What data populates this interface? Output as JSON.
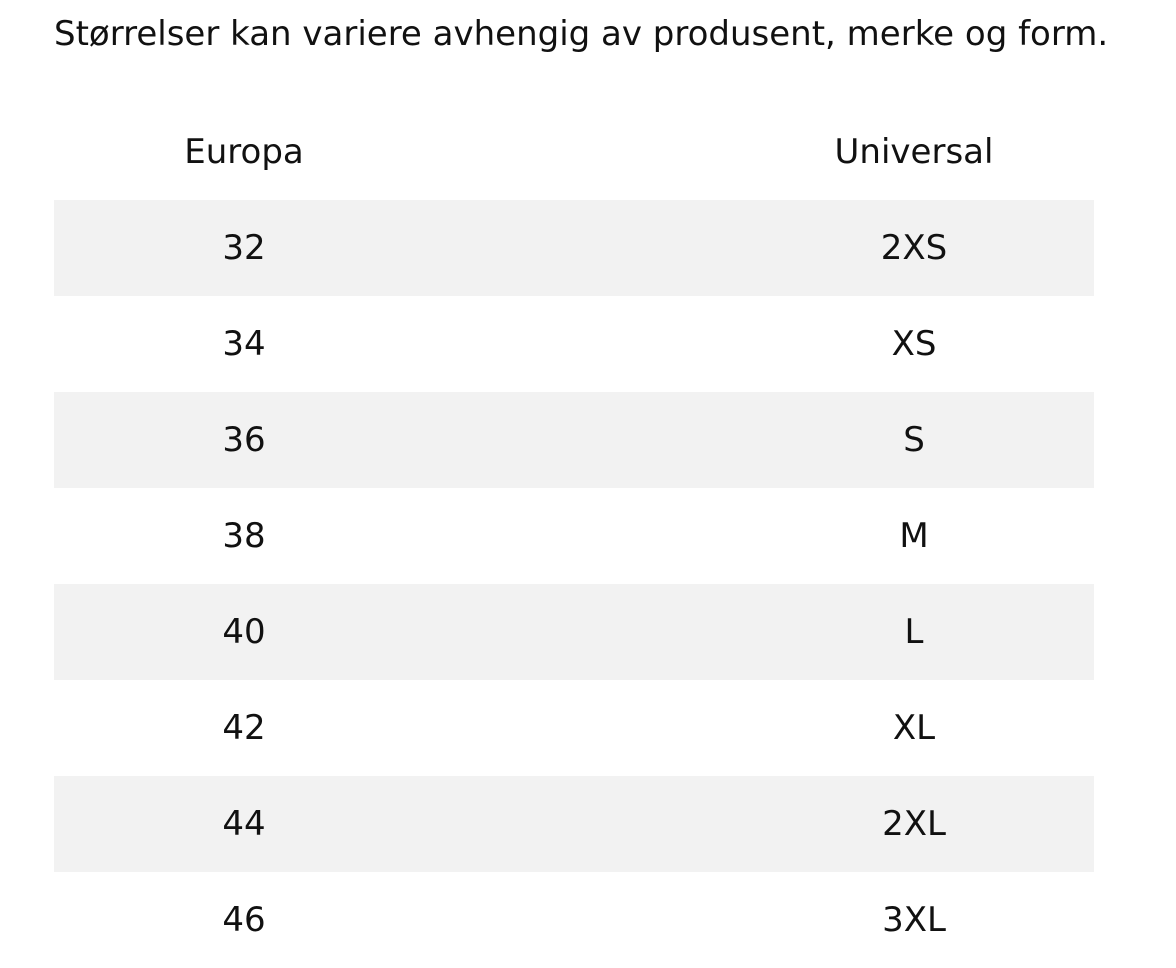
{
  "note": "Størrelser kan variere avhengig av produsent, merke og form.",
  "table": {
    "headers": {
      "europe": "Europa",
      "universal": "Universal"
    },
    "rows": [
      {
        "eu": "32",
        "universal": "2XS"
      },
      {
        "eu": "34",
        "universal": "XS"
      },
      {
        "eu": "36",
        "universal": "S"
      },
      {
        "eu": "38",
        "universal": "M"
      },
      {
        "eu": "40",
        "universal": "L"
      },
      {
        "eu": "42",
        "universal": "XL"
      },
      {
        "eu": "44",
        "universal": "2XL"
      },
      {
        "eu": "46",
        "universal": "3XL"
      }
    ]
  },
  "colors": {
    "text": "#111111",
    "shaded_row": "#f2f2f2",
    "background": "#ffffff"
  }
}
